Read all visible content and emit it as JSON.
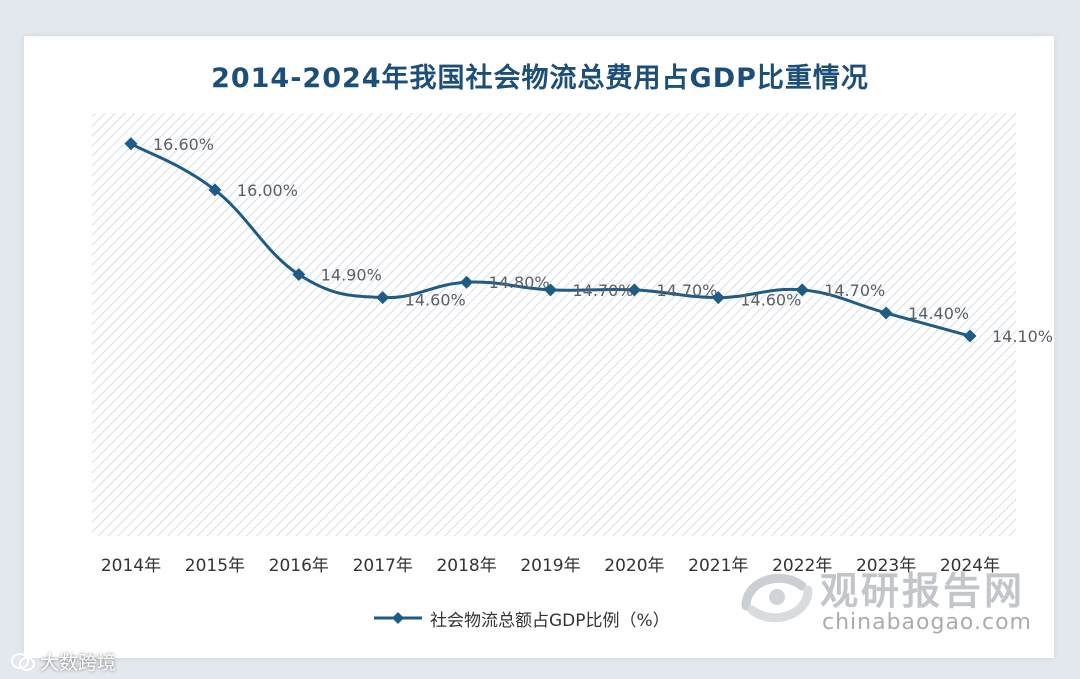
{
  "chart_data": {
    "type": "line",
    "title": "2014-2024年我国社会物流总费用占GDP比重情况",
    "categories": [
      "2014年",
      "2015年",
      "2016年",
      "2017年",
      "2018年",
      "2019年",
      "2020年",
      "2021年",
      "2022年",
      "2023年",
      "2024年"
    ],
    "series": [
      {
        "name": "社会物流总额占GDP比例（%）",
        "values": [
          16.6,
          16.0,
          14.9,
          14.6,
          14.8,
          14.7,
          14.7,
          14.6,
          14.7,
          14.4,
          14.1
        ],
        "labels": [
          "16.60%",
          "16.00%",
          "14.90%",
          "14.60%",
          "14.80%",
          "14.70%",
          "14.70%",
          "14.60%",
          "14.70%",
          "14.40%",
          "14.10%"
        ]
      }
    ],
    "xlabel": "",
    "ylabel": "",
    "ylim": [
      11.5,
      17.0
    ],
    "y_axis_visible": false,
    "grid": false,
    "plot_background": "diagonal-hatch",
    "legend_position": "bottom",
    "colors": {
      "line": "#1f5c85",
      "marker": "#1f5c85",
      "title": "#1b4f7a",
      "hatch": "#cfd6dd"
    }
  },
  "watermarks": {
    "bottom_left": "大数跨境",
    "logo_cn": "观研报告网",
    "logo_url": "chinabaogao.com"
  }
}
